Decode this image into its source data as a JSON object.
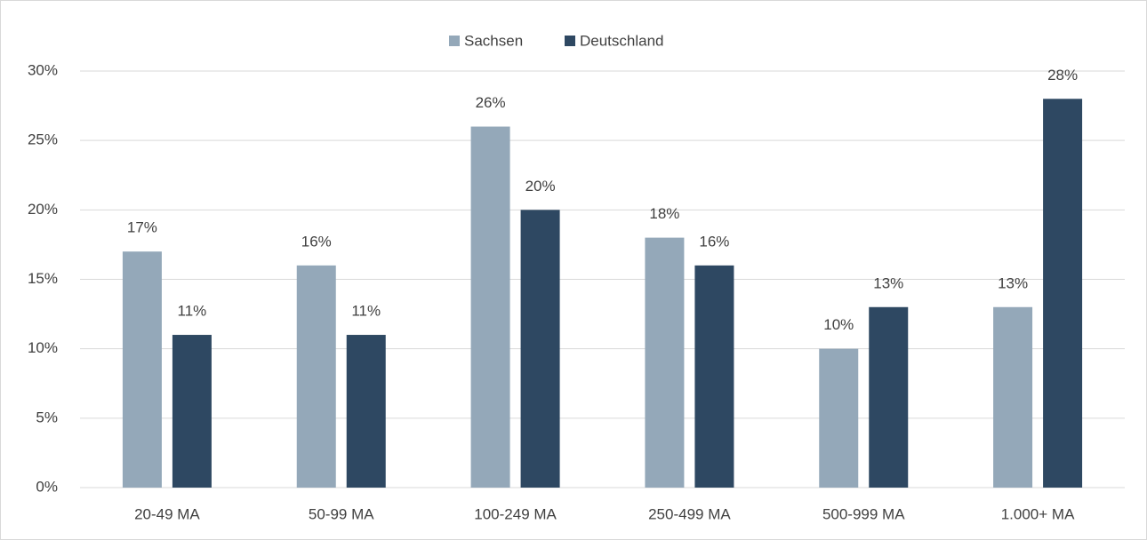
{
  "chart_data": {
    "type": "bar",
    "categories": [
      "20-49 MA",
      "50-99 MA",
      "100-249 MA",
      "250-499 MA",
      "500-999 MA",
      "1.000+ MA"
    ],
    "series": [
      {
        "name": "Sachsen",
        "color": "#94a8b9",
        "values": [
          17,
          16,
          26,
          18,
          10,
          13
        ],
        "value_labels": [
          "17%",
          "16%",
          "26%",
          "18%",
          "10%",
          "13%"
        ]
      },
      {
        "name": "Deutschland",
        "color": "#2e4862",
        "values": [
          11,
          11,
          20,
          16,
          13,
          28
        ],
        "value_labels": [
          "11%",
          "11%",
          "20%",
          "16%",
          "13%",
          "28%"
        ]
      }
    ],
    "ylim": [
      0,
      30
    ],
    "yticks": [
      {
        "value": 0,
        "label": "0%"
      },
      {
        "value": 5,
        "label": "5%"
      },
      {
        "value": 10,
        "label": "10%"
      },
      {
        "value": 15,
        "label": "15%"
      },
      {
        "value": 20,
        "label": "20%"
      },
      {
        "value": 25,
        "label": "25%"
      },
      {
        "value": 30,
        "label": "30%"
      }
    ],
    "grid": true,
    "legend": "top"
  }
}
